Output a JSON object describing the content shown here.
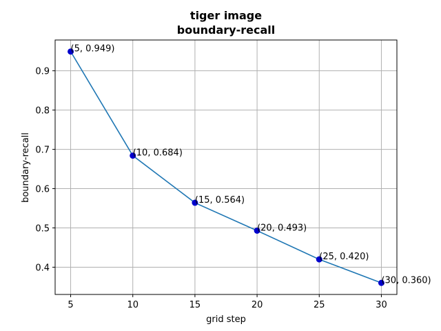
{
  "chart_data": {
    "type": "line",
    "title_line1": "tiger image",
    "title_line2": "boundary-recall",
    "xlabel": "grid step",
    "ylabel": "boundary-recall",
    "x": [
      5,
      10,
      15,
      20,
      25,
      30
    ],
    "series": [
      {
        "values": [
          0.949,
          0.684,
          0.564,
          0.493,
          0.42,
          0.36
        ]
      }
    ],
    "data_labels": [
      "(5, 0.949)",
      "(10, 0.684)",
      "(15, 0.564)",
      "(20, 0.493)",
      "(25, 0.420)",
      "(30, 0.360)"
    ],
    "xticks": [
      5,
      10,
      15,
      20,
      25,
      30
    ],
    "yticks": [
      0.4,
      0.5,
      0.6,
      0.7,
      0.8,
      0.9
    ],
    "xtick_labels": [
      "5",
      "10",
      "15",
      "20",
      "25",
      "30"
    ],
    "ytick_labels": [
      "0.4",
      "0.5",
      "0.6",
      "0.7",
      "0.8",
      "0.9"
    ],
    "xlim": [
      3.75,
      31.25
    ],
    "ylim": [
      0.3306,
      0.9784
    ],
    "grid": true,
    "line_color": "#1f77b4",
    "marker_color": "#0000cc"
  }
}
